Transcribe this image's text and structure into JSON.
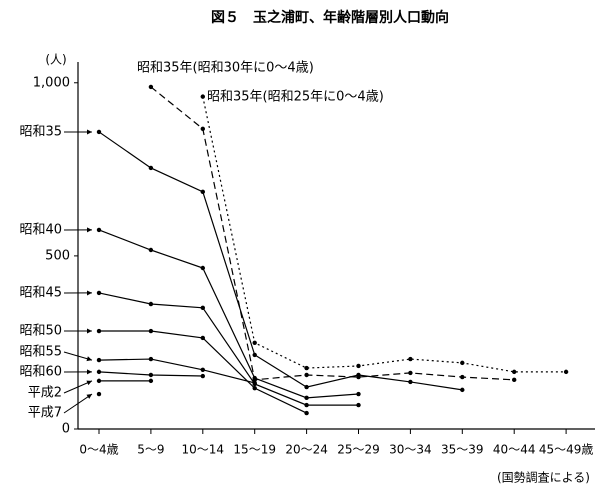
{
  "chart_data": {
    "type": "line",
    "title": "図５　玉之浦町、年齢階層別人口動向",
    "y_unit": "(人)",
    "source": "(国勢調査による)",
    "categories": [
      "0～4歳",
      "5～9",
      "10～14",
      "15～19",
      "20～24",
      "25～29",
      "30～34",
      "35～39",
      "40～44",
      "45～49歳"
    ],
    "ylim": [
      0,
      1060
    ],
    "yticks": [
      0,
      500,
      {
        "value": 1000,
        "label": "1,000"
      }
    ],
    "series": [
      {
        "name": "昭和35",
        "color": "#000000",
        "style": "solid",
        "values": [
          858,
          754,
          685,
          214,
          121,
          156,
          136,
          113,
          null,
          null
        ]
      },
      {
        "name": "昭和40",
        "color": "#000000",
        "style": "solid",
        "values": [
          575,
          517,
          465,
          147,
          90,
          101,
          null,
          null,
          null,
          null
        ]
      },
      {
        "name": "昭和45",
        "color": "#000000",
        "style": "solid",
        "values": [
          393,
          361,
          350,
          130,
          69,
          69,
          null,
          null,
          null,
          null
        ]
      },
      {
        "name": "昭和50",
        "color": "#000000",
        "style": "solid",
        "values": [
          283,
          283,
          263,
          118,
          46,
          null,
          null,
          null,
          null,
          null
        ]
      },
      {
        "name": "昭和55",
        "color": "#000000",
        "style": "solid",
        "values": [
          199,
          202,
          171,
          133,
          null,
          null,
          null,
          null,
          null,
          null
        ]
      },
      {
        "name": "昭和60",
        "color": "#000000",
        "style": "solid",
        "values": [
          165,
          156,
          153,
          null,
          null,
          null,
          null,
          null,
          null,
          null
        ]
      },
      {
        "name": "平成2",
        "color": "#000000",
        "style": "solid",
        "values": [
          139,
          139,
          null,
          null,
          null,
          null,
          null,
          null,
          null,
          null
        ]
      },
      {
        "name": "平成7",
        "color": "#000000",
        "style": "solid",
        "values": [
          101,
          null,
          null,
          null,
          null,
          null,
          null,
          null,
          null,
          null
        ]
      },
      {
        "name": "昭和35年(昭和30年に0～4歳)",
        "color": "#000000",
        "style": "dashed",
        "values": [
          null,
          988,
          867,
          142,
          156,
          150,
          162,
          150,
          142,
          null
        ]
      },
      {
        "name": "昭和35年(昭和25年に0～4歳)",
        "color": "#000000",
        "style": "dotted",
        "values": [
          null,
          null,
          960,
          249,
          176,
          182,
          202,
          191,
          165,
          165
        ]
      }
    ]
  }
}
